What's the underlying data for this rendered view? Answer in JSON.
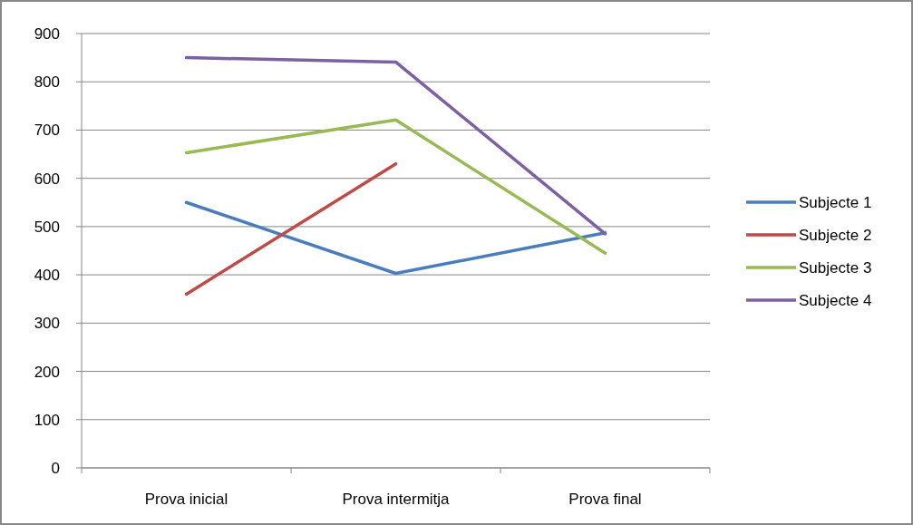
{
  "chart_data": {
    "type": "line",
    "categories": [
      "Prova inicial",
      "Prova intermitja",
      "Prova final"
    ],
    "series": [
      {
        "name": "Subjecte 1",
        "color": "#4a7ebb",
        "values": [
          550,
          403,
          487
        ]
      },
      {
        "name": "Subjecte 2",
        "color": "#be4b48",
        "values": [
          360,
          630,
          null
        ]
      },
      {
        "name": "Subjecte 3",
        "color": "#98b954",
        "values": [
          653,
          721,
          445
        ]
      },
      {
        "name": "Subjecte 4",
        "color": "#7d60a0",
        "values": [
          850,
          841,
          485
        ]
      }
    ],
    "ylim": [
      0,
      900
    ],
    "yticks": [
      0,
      100,
      200,
      300,
      400,
      500,
      600,
      700,
      800,
      900
    ],
    "grid": "y",
    "legend": "right"
  }
}
